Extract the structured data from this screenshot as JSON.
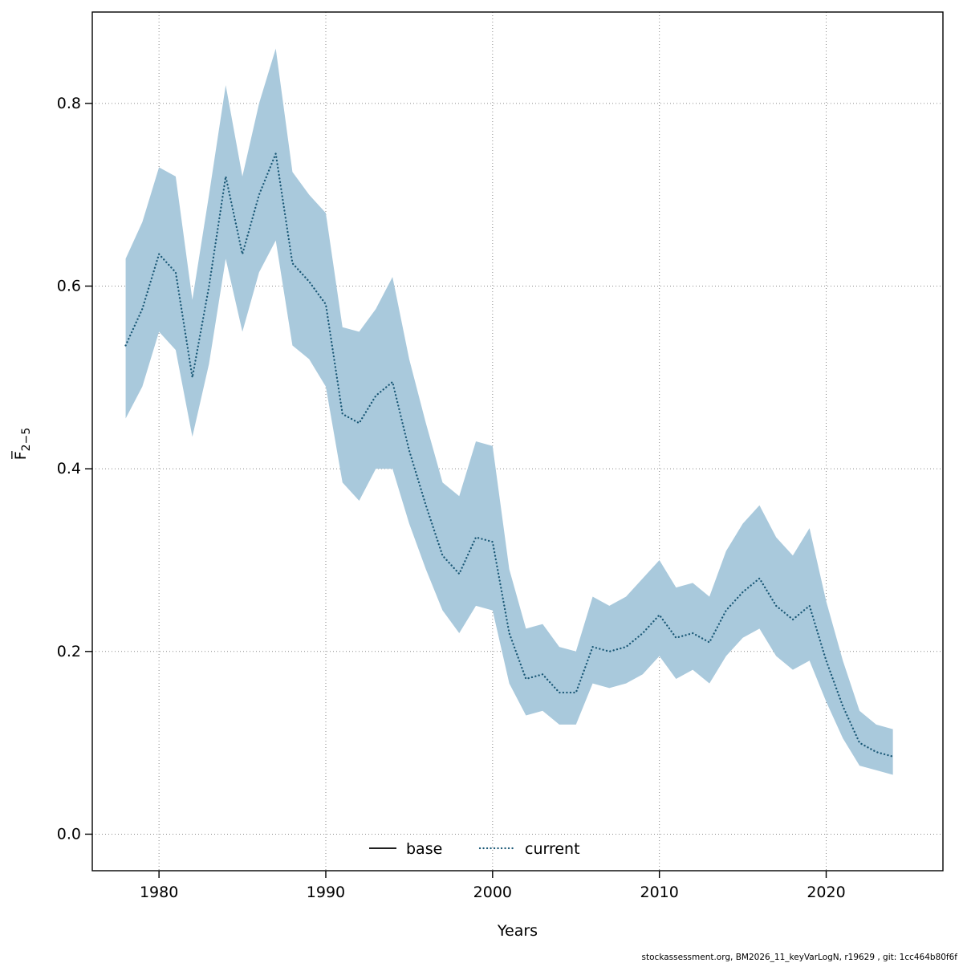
{
  "footer": "stockassessment.org, BM2026_11_keyVarLogN, r19629 , git: 1cc464b80f6f",
  "colors": {
    "band": "#A9C9DC",
    "line": "#1A5876",
    "base_line": "#000000",
    "grid": "#8a8a8a",
    "axis": "#000000"
  },
  "chart_data": {
    "type": "area",
    "title": "",
    "xlabel": "Years",
    "ylabel_main": "F̅",
    "ylabel_sub": "2−5",
    "xlim": [
      1976,
      2027
    ],
    "ylim": [
      -0.04,
      0.9
    ],
    "x_ticks": [
      1980,
      1990,
      2000,
      2010,
      2020
    ],
    "y_ticks": [
      0.0,
      0.2,
      0.4,
      0.6,
      0.8
    ],
    "grid": true,
    "legend": [
      {
        "label": "base",
        "style": "solid",
        "color": "#000000"
      },
      {
        "label": "current",
        "style": "dotted",
        "color": "#1A5876"
      }
    ],
    "years": [
      1978,
      1979,
      1980,
      1981,
      1982,
      1983,
      1984,
      1985,
      1986,
      1987,
      1988,
      1989,
      1990,
      1991,
      1992,
      1993,
      1994,
      1995,
      1996,
      1997,
      1998,
      1999,
      2000,
      2001,
      2002,
      2003,
      2004,
      2005,
      2006,
      2007,
      2008,
      2009,
      2010,
      2011,
      2012,
      2013,
      2014,
      2015,
      2016,
      2017,
      2018,
      2019,
      2020,
      2021,
      2022,
      2023,
      2024
    ],
    "series": [
      {
        "name": "current",
        "values": [
          0.535,
          0.575,
          0.635,
          0.615,
          0.5,
          0.6,
          0.72,
          0.635,
          0.7,
          0.745,
          0.625,
          0.605,
          0.58,
          0.46,
          0.45,
          0.48,
          0.495,
          0.42,
          0.36,
          0.305,
          0.285,
          0.325,
          0.32,
          0.22,
          0.17,
          0.175,
          0.155,
          0.155,
          0.205,
          0.2,
          0.205,
          0.22,
          0.24,
          0.215,
          0.22,
          0.21,
          0.245,
          0.265,
          0.28,
          0.25,
          0.235,
          0.25,
          0.19,
          0.14,
          0.1,
          0.09,
          0.085
        ],
        "upper": [
          0.63,
          0.67,
          0.73,
          0.72,
          0.585,
          0.7,
          0.82,
          0.72,
          0.8,
          0.86,
          0.725,
          0.7,
          0.68,
          0.555,
          0.55,
          0.575,
          0.61,
          0.52,
          0.45,
          0.385,
          0.37,
          0.43,
          0.425,
          0.29,
          0.225,
          0.23,
          0.205,
          0.2,
          0.26,
          0.25,
          0.26,
          0.28,
          0.3,
          0.27,
          0.275,
          0.26,
          0.31,
          0.34,
          0.36,
          0.325,
          0.305,
          0.335,
          0.255,
          0.19,
          0.135,
          0.12,
          0.115
        ],
        "lower": [
          0.455,
          0.49,
          0.55,
          0.53,
          0.435,
          0.515,
          0.63,
          0.55,
          0.615,
          0.65,
          0.535,
          0.52,
          0.49,
          0.385,
          0.365,
          0.4,
          0.4,
          0.34,
          0.29,
          0.245,
          0.22,
          0.25,
          0.245,
          0.165,
          0.13,
          0.135,
          0.12,
          0.12,
          0.165,
          0.16,
          0.165,
          0.175,
          0.195,
          0.17,
          0.18,
          0.165,
          0.195,
          0.215,
          0.225,
          0.195,
          0.18,
          0.19,
          0.145,
          0.105,
          0.075,
          0.07,
          0.065
        ]
      }
    ]
  }
}
